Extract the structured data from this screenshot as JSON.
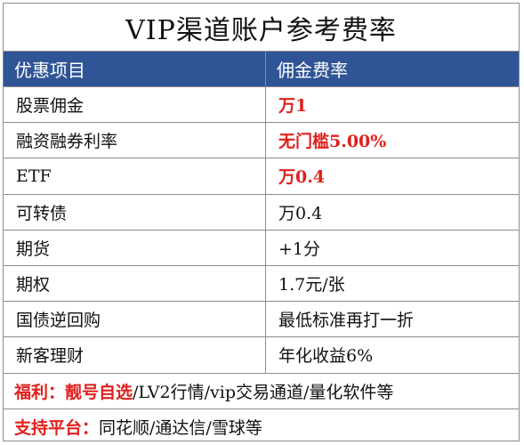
{
  "title": "VIP渠道账户参考费率",
  "header": {
    "col1": "优惠项目",
    "col2": "佣金费率"
  },
  "rows": [
    {
      "item": "股票佣金",
      "rate": "万1"
    },
    {
      "item": "融资融券利率",
      "rate": "无门槛5.00%"
    },
    {
      "item": "ETF",
      "rate": "万0.4"
    },
    {
      "item": "可转债",
      "rate": "万0.4"
    },
    {
      "item": "期货",
      "rate": "+1分"
    },
    {
      "item": "期权",
      "rate": "1.7元/张"
    },
    {
      "item": "国债逆回购",
      "rate": "最低标准再打一折"
    },
    {
      "item": "新客理财",
      "rate": "年化收益6%"
    }
  ],
  "benefits": {
    "label": "福利：",
    "highlight": "靓号自选",
    "rest": "/LV2行情/vip交易通道/量化软件等"
  },
  "platforms": {
    "label": "支持平台：",
    "text": "同花顺/通达信/雪球等"
  },
  "colors": {
    "header_bg": "#2f5597",
    "accent_red": "#e0201d",
    "border": "#8c8c8c"
  }
}
